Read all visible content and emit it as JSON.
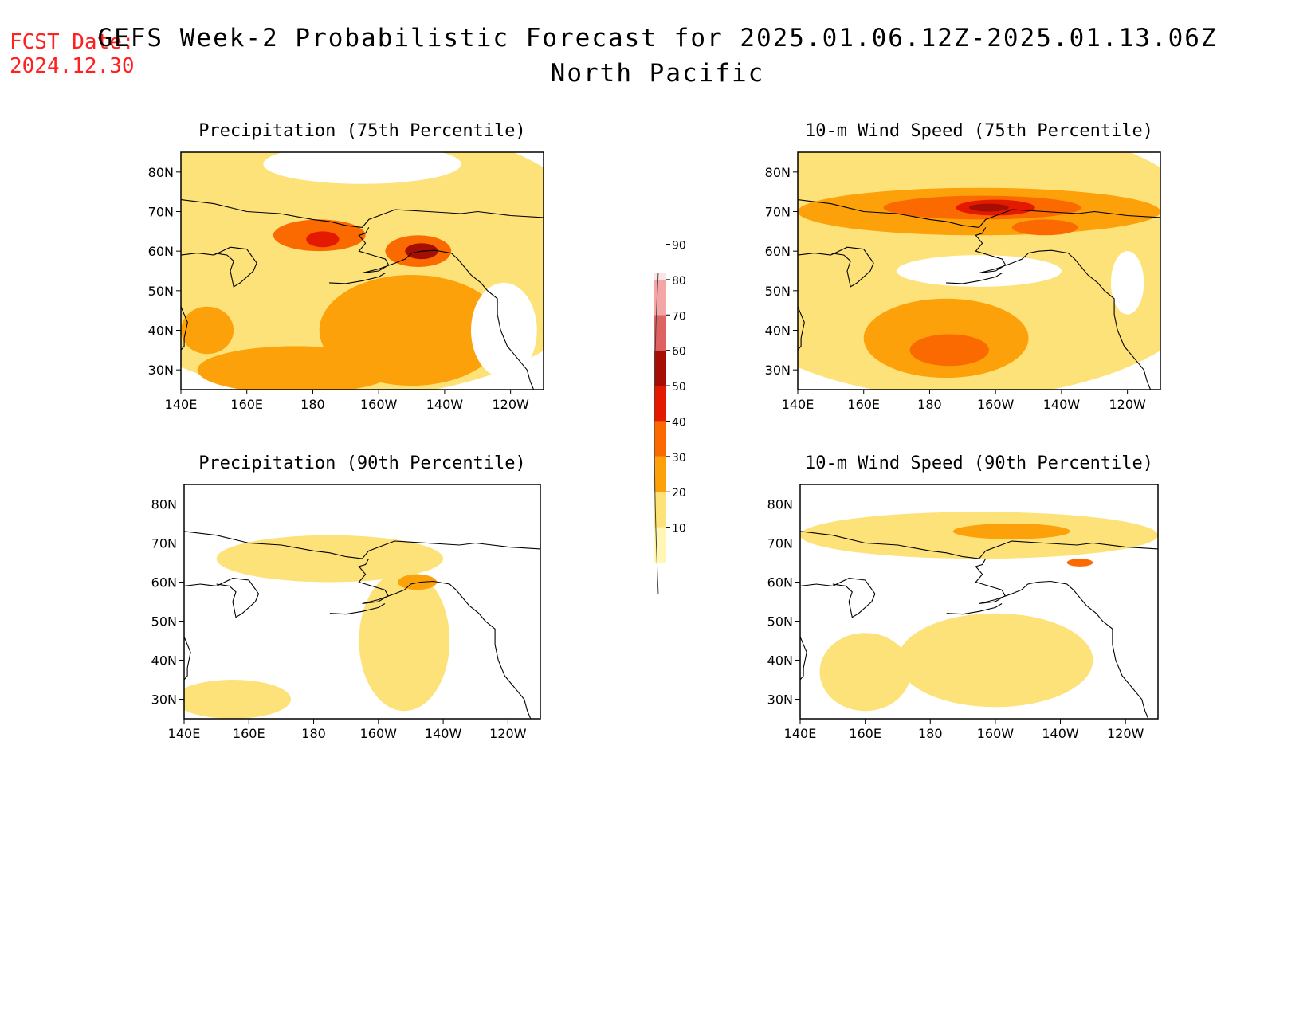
{
  "header": {
    "fcst_label": "FCST Date:",
    "fcst_date": "2024.12.30",
    "title": "GEFS Week-2 Probabilistic Forecast for 2025.01.06.12Z-2025.01.13.06Z",
    "subtitle": "North Pacific"
  },
  "colorbar": {
    "levels": [
      10,
      20,
      30,
      40,
      50,
      60,
      70,
      80,
      90
    ],
    "labels": [
      "10",
      "20",
      "30",
      "40",
      "50",
      "60",
      "70",
      "80",
      "90"
    ],
    "colors": [
      "#fff7b3",
      "#fde27a",
      "#fca10a",
      "#fb6a00",
      "#e31a00",
      "#a50f03",
      "#de6262",
      "#f4a5a5",
      "#fde3e3"
    ]
  },
  "panels": [
    {
      "title": "Precipitation (75th Percentile)",
      "lon_labels": [
        "140E",
        "160E",
        "180",
        "160W",
        "140W",
        "120W"
      ],
      "lat_labels": [
        "80N",
        "70N",
        "60N",
        "50N",
        "40N",
        "30N"
      ],
      "blobs": [
        {
          "lon": 190,
          "lat": 58,
          "rlon": 80,
          "rlat": 35,
          "level": 20
        },
        {
          "lon": 210,
          "lat": 40,
          "rlon": 28,
          "rlat": 14,
          "level": 30
        },
        {
          "lon": 148,
          "lat": 40,
          "rlon": 8,
          "rlat": 6,
          "level": 30
        },
        {
          "lon": 175,
          "lat": 30,
          "rlon": 30,
          "rlat": 6,
          "level": 30
        },
        {
          "lon": 182,
          "lat": 64,
          "rlon": 14,
          "rlat": 4,
          "level": 40
        },
        {
          "lon": 212,
          "lat": 60,
          "rlon": 10,
          "rlat": 4,
          "level": 40
        },
        {
          "lon": 183,
          "lat": 63,
          "rlon": 5,
          "rlat": 2,
          "level": 50
        },
        {
          "lon": 213,
          "lat": 60,
          "rlon": 5,
          "rlat": 2,
          "level": 60
        }
      ],
      "clear": [
        {
          "lon": 238,
          "lat": 40,
          "rlon": 10,
          "rlat": 12
        },
        {
          "lon": 195,
          "lat": 82,
          "rlon": 30,
          "rlat": 5
        }
      ]
    },
    {
      "title": "10-m Wind Speed (75th Percentile)",
      "lon_labels": [
        "140E",
        "160E",
        "180",
        "160W",
        "140W",
        "120W"
      ],
      "lat_labels": [
        "80N",
        "70N",
        "60N",
        "50N",
        "40N",
        "30N"
      ],
      "blobs": [
        {
          "lon": 190,
          "lat": 58,
          "rlon": 80,
          "rlat": 35,
          "level": 20
        },
        {
          "lon": 195,
          "lat": 70,
          "rlon": 55,
          "rlat": 6,
          "level": 30
        },
        {
          "lon": 185,
          "lat": 38,
          "rlon": 25,
          "rlat": 10,
          "level": 30
        },
        {
          "lon": 196,
          "lat": 71,
          "rlon": 30,
          "rlat": 3,
          "level": 40
        },
        {
          "lon": 186,
          "lat": 35,
          "rlon": 12,
          "rlat": 4,
          "level": 40
        },
        {
          "lon": 215,
          "lat": 66,
          "rlon": 10,
          "rlat": 2,
          "level": 40
        },
        {
          "lon": 200,
          "lat": 71,
          "rlon": 12,
          "rlat": 2,
          "level": 50
        },
        {
          "lon": 198,
          "lat": 71,
          "rlon": 6,
          "rlat": 1,
          "level": 60
        }
      ],
      "clear": [
        {
          "lon": 195,
          "lat": 55,
          "rlon": 25,
          "rlat": 4
        },
        {
          "lon": 240,
          "lat": 52,
          "rlon": 5,
          "rlat": 8
        }
      ]
    },
    {
      "title": "Precipitation (90th Percentile)",
      "lon_labels": [
        "140E",
        "160E",
        "180",
        "160W",
        "140W",
        "120W"
      ],
      "lat_labels": [
        "80N",
        "70N",
        "60N",
        "50N",
        "40N",
        "30N"
      ],
      "blobs": [
        {
          "lon": 208,
          "lat": 45,
          "rlon": 14,
          "rlat": 18,
          "level": 20
        },
        {
          "lon": 185,
          "lat": 66,
          "rlon": 35,
          "rlat": 6,
          "level": 20
        },
        {
          "lon": 155,
          "lat": 30,
          "rlon": 18,
          "rlat": 5,
          "level": 20
        },
        {
          "lon": 212,
          "lat": 60,
          "rlon": 6,
          "rlat": 2,
          "level": 30
        }
      ],
      "clear": []
    },
    {
      "title": "10-m Wind Speed (90th Percentile)",
      "lon_labels": [
        "140E",
        "160E",
        "180",
        "160W",
        "140W",
        "120W"
      ],
      "lat_labels": [
        "80N",
        "70N",
        "60N",
        "50N",
        "40N",
        "30N"
      ],
      "blobs": [
        {
          "lon": 195,
          "lat": 72,
          "rlon": 55,
          "rlat": 6,
          "level": 20
        },
        {
          "lon": 200,
          "lat": 40,
          "rlon": 30,
          "rlat": 12,
          "level": 20
        },
        {
          "lon": 160,
          "lat": 37,
          "rlon": 14,
          "rlat": 10,
          "level": 20
        },
        {
          "lon": 205,
          "lat": 73,
          "rlon": 18,
          "rlat": 2,
          "level": 30
        },
        {
          "lon": 226,
          "lat": 65,
          "rlon": 4,
          "rlat": 1,
          "level": 40
        }
      ],
      "clear": []
    }
  ]
}
